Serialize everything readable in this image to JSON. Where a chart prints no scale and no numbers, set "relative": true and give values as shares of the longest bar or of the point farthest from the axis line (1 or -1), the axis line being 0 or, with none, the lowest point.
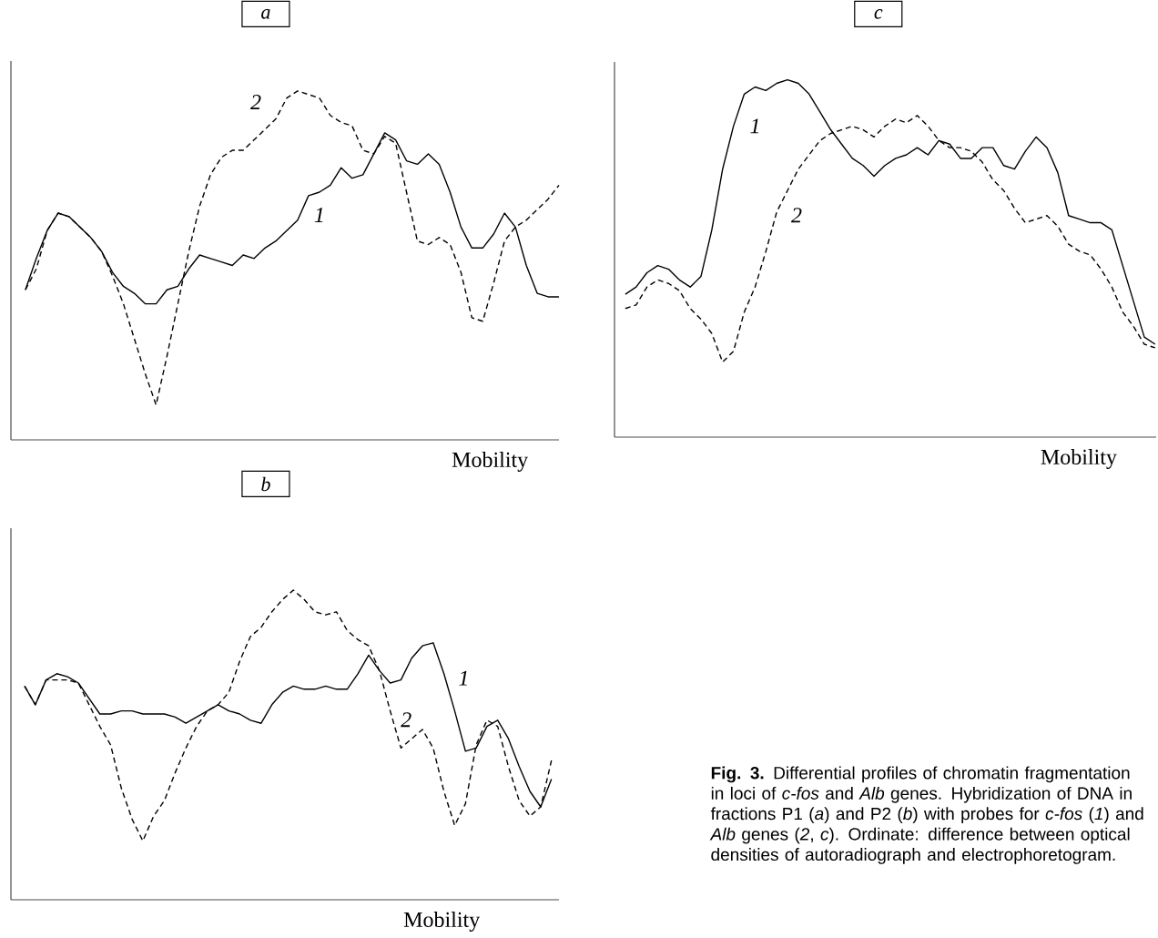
{
  "chart_data": [
    {
      "type": "line",
      "title": "a",
      "xlabel": "Mobility",
      "relative": true,
      "categories": [
        null,
        null,
        null,
        null,
        null,
        null,
        null,
        null,
        null,
        null,
        null,
        null,
        null,
        null,
        null,
        null,
        null,
        null,
        null,
        null,
        null,
        null,
        null,
        null,
        null,
        null,
        null,
        null,
        null,
        null,
        null,
        null,
        null,
        null,
        null,
        null,
        null,
        null,
        null,
        null,
        null,
        null,
        null,
        null,
        null,
        null,
        null,
        null,
        null,
        null
      ],
      "series": [
        {
          "name": "1",
          "color": "#000000",
          "line_style": "solid",
          "values": [
            0.43,
            0.52,
            0.6,
            0.65,
            0.64,
            0.61,
            0.58,
            0.54,
            0.48,
            0.44,
            0.42,
            0.39,
            0.39,
            0.43,
            0.44,
            0.49,
            0.53,
            0.52,
            0.51,
            0.5,
            0.53,
            0.52,
            0.55,
            0.57,
            0.6,
            0.63,
            0.7,
            0.71,
            0.73,
            0.78,
            0.75,
            0.76,
            0.82,
            0.88,
            0.86,
            0.8,
            0.79,
            0.82,
            0.79,
            0.71,
            0.61,
            0.55,
            0.55,
            0.59,
            0.65,
            0.61,
            0.5,
            0.42,
            0.41,
            0.41
          ]
        },
        {
          "name": "2",
          "color": "#000000",
          "line_style": "dashed",
          "values": [
            0.43,
            0.49,
            0.6,
            0.65,
            0.64,
            0.61,
            0.58,
            0.54,
            0.47,
            0.39,
            0.29,
            0.19,
            0.1,
            0.24,
            0.39,
            0.54,
            0.67,
            0.76,
            0.81,
            0.83,
            0.83,
            0.86,
            0.89,
            0.92,
            0.98,
            1.0,
            0.99,
            0.98,
            0.93,
            0.91,
            0.9,
            0.83,
            0.82,
            0.87,
            0.85,
            0.71,
            0.57,
            0.56,
            0.58,
            0.56,
            0.48,
            0.35,
            0.34,
            0.45,
            0.57,
            0.61,
            0.63,
            0.66,
            0.69,
            0.73
          ]
        }
      ]
    },
    {
      "type": "line",
      "title": "c",
      "xlabel": "Mobility",
      "relative": true,
      "categories": [
        null,
        null,
        null,
        null,
        null,
        null,
        null,
        null,
        null,
        null,
        null,
        null,
        null,
        null,
        null,
        null,
        null,
        null,
        null,
        null,
        null,
        null,
        null,
        null,
        null,
        null,
        null,
        null,
        null,
        null,
        null,
        null,
        null,
        null,
        null,
        null,
        null,
        null,
        null,
        null,
        null,
        null,
        null,
        null,
        null,
        null,
        null,
        null,
        null,
        null
      ],
      "series": [
        {
          "name": "1",
          "color": "#000000",
          "line_style": "solid",
          "values": [
            0.4,
            0.42,
            0.46,
            0.48,
            0.47,
            0.44,
            0.42,
            0.45,
            0.58,
            0.75,
            0.87,
            0.96,
            0.98,
            0.97,
            0.99,
            1.0,
            0.99,
            0.96,
            0.91,
            0.86,
            0.82,
            0.78,
            0.76,
            0.73,
            0.76,
            0.78,
            0.79,
            0.81,
            0.79,
            0.83,
            0.82,
            0.78,
            0.78,
            0.81,
            0.81,
            0.76,
            0.75,
            0.8,
            0.84,
            0.81,
            0.74,
            0.62,
            0.61,
            0.6,
            0.6,
            0.58,
            0.48,
            0.38,
            0.28,
            0.26
          ]
        },
        {
          "name": "2",
          "color": "#000000",
          "line_style": "dashed",
          "values": [
            0.36,
            0.37,
            0.42,
            0.44,
            0.43,
            0.41,
            0.36,
            0.33,
            0.29,
            0.21,
            0.24,
            0.35,
            0.42,
            0.52,
            0.63,
            0.69,
            0.75,
            0.79,
            0.83,
            0.85,
            0.86,
            0.87,
            0.86,
            0.84,
            0.87,
            0.89,
            0.88,
            0.9,
            0.87,
            0.83,
            0.81,
            0.81,
            0.8,
            0.77,
            0.72,
            0.69,
            0.64,
            0.6,
            0.61,
            0.62,
            0.59,
            0.54,
            0.52,
            0.51,
            0.47,
            0.42,
            0.35,
            0.31,
            0.26,
            0.25
          ]
        }
      ]
    },
    {
      "type": "line",
      "title": "b",
      "xlabel": "Mobility",
      "relative": true,
      "categories": [
        null,
        null,
        null,
        null,
        null,
        null,
        null,
        null,
        null,
        null,
        null,
        null,
        null,
        null,
        null,
        null,
        null,
        null,
        null,
        null,
        null,
        null,
        null,
        null,
        null,
        null,
        null,
        null,
        null,
        null,
        null,
        null,
        null,
        null,
        null,
        null,
        null,
        null,
        null,
        null,
        null,
        null,
        null,
        null,
        null,
        null,
        null,
        null,
        null,
        null
      ],
      "series": [
        {
          "name": "1",
          "color": "#000000",
          "line_style": "solid",
          "values": [
            0.69,
            0.63,
            0.71,
            0.73,
            0.72,
            0.7,
            0.65,
            0.6,
            0.6,
            0.61,
            0.61,
            0.6,
            0.6,
            0.6,
            0.59,
            0.57,
            0.59,
            0.61,
            0.63,
            0.61,
            0.6,
            0.58,
            0.57,
            0.63,
            0.67,
            0.69,
            0.68,
            0.68,
            0.69,
            0.68,
            0.68,
            0.73,
            0.79,
            0.74,
            0.7,
            0.71,
            0.78,
            0.82,
            0.83,
            0.73,
            0.61,
            0.48,
            0.49,
            0.56,
            0.58,
            0.52,
            0.43,
            0.35,
            0.3,
            0.39
          ]
        },
        {
          "name": "2",
          "color": "#000000",
          "line_style": "dashed",
          "values": [
            0.69,
            0.63,
            0.71,
            0.71,
            0.71,
            0.7,
            0.63,
            0.56,
            0.5,
            0.36,
            0.26,
            0.19,
            0.27,
            0.32,
            0.41,
            0.49,
            0.56,
            0.61,
            0.63,
            0.67,
            0.77,
            0.85,
            0.88,
            0.93,
            0.97,
            1.0,
            0.97,
            0.93,
            0.92,
            0.93,
            0.87,
            0.84,
            0.82,
            0.74,
            0.61,
            0.49,
            0.52,
            0.55,
            0.49,
            0.35,
            0.24,
            0.31,
            0.5,
            0.58,
            0.56,
            0.43,
            0.32,
            0.27,
            0.3,
            0.45
          ]
        }
      ],
      "annotations": [
        "**Fig. 3.** Differential profiles of chromatin fragmentation in loci of *c-fos* and *Alb* genes. Hybridization of DNA in fractions P1 (*a*) and P2 (*b*) with probes for *c-fos* (*1*) and *Alb* genes (*2*, *c*). Ordinate: difference between optical densities of autoradiograph and electrophoretogram."
      ]
    }
  ]
}
